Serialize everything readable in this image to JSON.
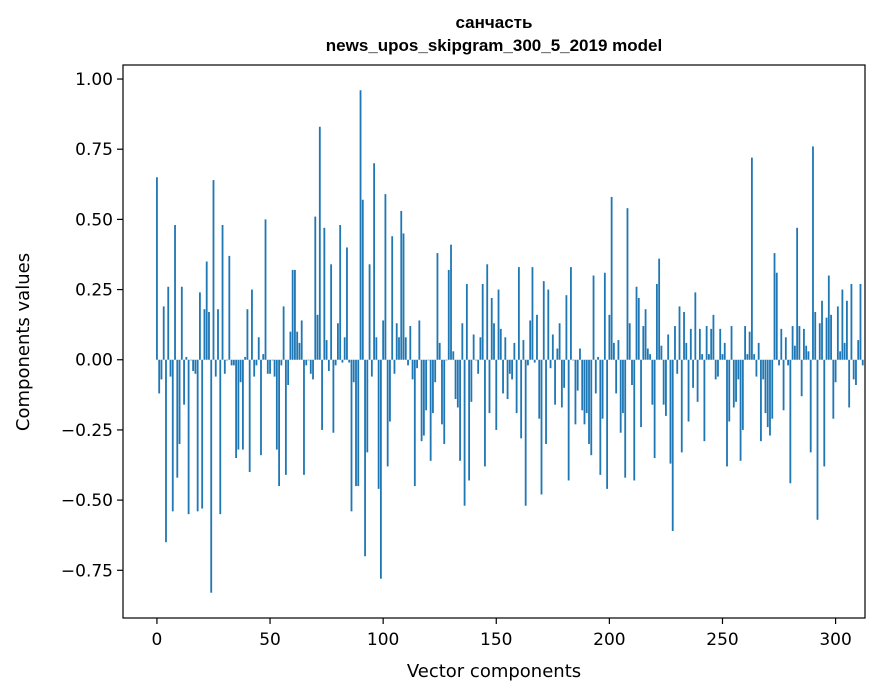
{
  "chart_data": {
    "type": "bar",
    "title_line1": "санчасть",
    "title_line2": "news_upos_skipgram_300_5_2019 model",
    "xlabel": "Vector components",
    "ylabel": "Components values",
    "xlim": [
      -15,
      313
    ],
    "ylim": [
      -0.92,
      1.05
    ],
    "xticks": [
      0,
      50,
      100,
      150,
      200,
      250,
      300
    ],
    "xtick_labels": [
      "0",
      "50",
      "100",
      "150",
      "200",
      "250",
      "300"
    ],
    "yticks": [
      -0.75,
      -0.5,
      -0.25,
      0.0,
      0.25,
      0.5,
      0.75,
      1.0
    ],
    "ytick_labels": [
      "−0.75",
      "−0.50",
      "−0.25",
      "0.00",
      "0.25",
      "0.50",
      "0.75",
      "1.00"
    ],
    "bar_color": "#1f77b4",
    "grid": false,
    "values": [
      0.65,
      -0.12,
      -0.07,
      0.19,
      -0.65,
      0.26,
      -0.06,
      -0.54,
      0.48,
      -0.42,
      -0.3,
      0.26,
      -0.16,
      0.01,
      -0.55,
      0.0,
      -0.04,
      -0.05,
      -0.54,
      0.24,
      -0.53,
      0.18,
      0.35,
      0.17,
      -0.83,
      0.64,
      -0.06,
      0.18,
      -0.55,
      0.48,
      -0.05,
      0.0,
      0.37,
      -0.02,
      -0.02,
      -0.35,
      -0.32,
      -0.08,
      -0.32,
      0.01,
      0.18,
      -0.4,
      0.25,
      -0.06,
      -0.02,
      0.08,
      -0.34,
      0.02,
      0.5,
      -0.05,
      -0.05,
      0.0,
      -0.06,
      -0.32,
      -0.45,
      -0.02,
      0.19,
      -0.41,
      -0.09,
      0.1,
      0.32,
      0.32,
      0.1,
      0.06,
      0.14,
      -0.41,
      -0.02,
      0.0,
      -0.05,
      -0.07,
      0.51,
      0.16,
      0.83,
      -0.25,
      0.47,
      0.07,
      -0.04,
      0.34,
      -0.26,
      -0.02,
      0.13,
      0.48,
      -0.01,
      0.08,
      0.4,
      -0.01,
      -0.54,
      -0.08,
      -0.45,
      -0.45,
      0.96,
      0.57,
      -0.7,
      -0.33,
      0.34,
      -0.06,
      0.7,
      0.08,
      -0.46,
      -0.78,
      0.14,
      0.59,
      -0.38,
      -0.22,
      0.44,
      -0.05,
      0.13,
      0.08,
      0.53,
      0.45,
      0.08,
      -0.02,
      0.12,
      -0.07,
      -0.45,
      -0.03,
      0.14,
      -0.29,
      -0.27,
      -0.18,
      0.0,
      -0.36,
      -0.19,
      -0.08,
      0.38,
      0.06,
      -0.23,
      -0.3,
      0.0,
      0.32,
      0.41,
      0.03,
      -0.14,
      -0.17,
      -0.36,
      0.13,
      -0.52,
      0.27,
      -0.43,
      -0.15,
      0.09,
      0.0,
      -0.05,
      0.08,
      0.27,
      -0.38,
      0.34,
      -0.19,
      0.22,
      0.13,
      -0.25,
      0.25,
      0.11,
      -0.12,
      0.08,
      -0.14,
      -0.05,
      -0.07,
      0.06,
      -0.19,
      0.33,
      -0.28,
      0.07,
      -0.52,
      -0.02,
      0.14,
      0.33,
      -0.01,
      0.16,
      -0.21,
      -0.48,
      0.28,
      -0.3,
      0.25,
      -0.03,
      0.09,
      -0.16,
      0.04,
      0.13,
      -0.17,
      -0.1,
      0.23,
      -0.43,
      0.33,
      0.0,
      -0.23,
      -0.11,
      0.04,
      -0.18,
      -0.23,
      -0.19,
      -0.3,
      -0.34,
      0.3,
      -0.12,
      0.01,
      -0.41,
      -0.21,
      0.31,
      -0.46,
      0.16,
      0.58,
      0.06,
      -0.12,
      0.07,
      -0.26,
      -0.19,
      -0.42,
      0.54,
      0.13,
      -0.09,
      -0.43,
      0.26,
      0.22,
      -0.24,
      0.12,
      0.18,
      0.04,
      0.02,
      -0.16,
      -0.35,
      0.27,
      0.36,
      0.05,
      -0.16,
      -0.2,
      0.09,
      -0.37,
      -0.61,
      0.12,
      -0.05,
      0.19,
      -0.33,
      0.17,
      0.06,
      -0.22,
      0.11,
      -0.1,
      0.24,
      -0.15,
      0.11,
      0.02,
      -0.29,
      0.12,
      0.02,
      0.11,
      0.16,
      -0.07,
      -0.06,
      0.11,
      0.02,
      0.06,
      -0.38,
      -0.22,
      0.12,
      -0.17,
      -0.15,
      -0.07,
      -0.36,
      -0.25,
      0.12,
      0.02,
      0.1,
      0.72,
      0.02,
      -0.06,
      0.06,
      -0.29,
      -0.07,
      -0.19,
      -0.24,
      -0.27,
      -0.21,
      0.38,
      0.31,
      -0.02,
      0.11,
      -0.18,
      0.08,
      -0.02,
      -0.44,
      0.12,
      0.05,
      0.47,
      0.12,
      -0.13,
      0.11,
      0.05,
      0.03,
      -0.33,
      0.76,
      0.17,
      -0.57,
      0.13,
      0.21,
      -0.38,
      0.15,
      0.3,
      0.16,
      -0.21,
      -0.08,
      0.19,
      0.03,
      0.25,
      0.06,
      0.21,
      -0.17,
      0.27,
      -0.07,
      -0.09,
      0.07,
      0.27,
      -0.02
    ]
  }
}
